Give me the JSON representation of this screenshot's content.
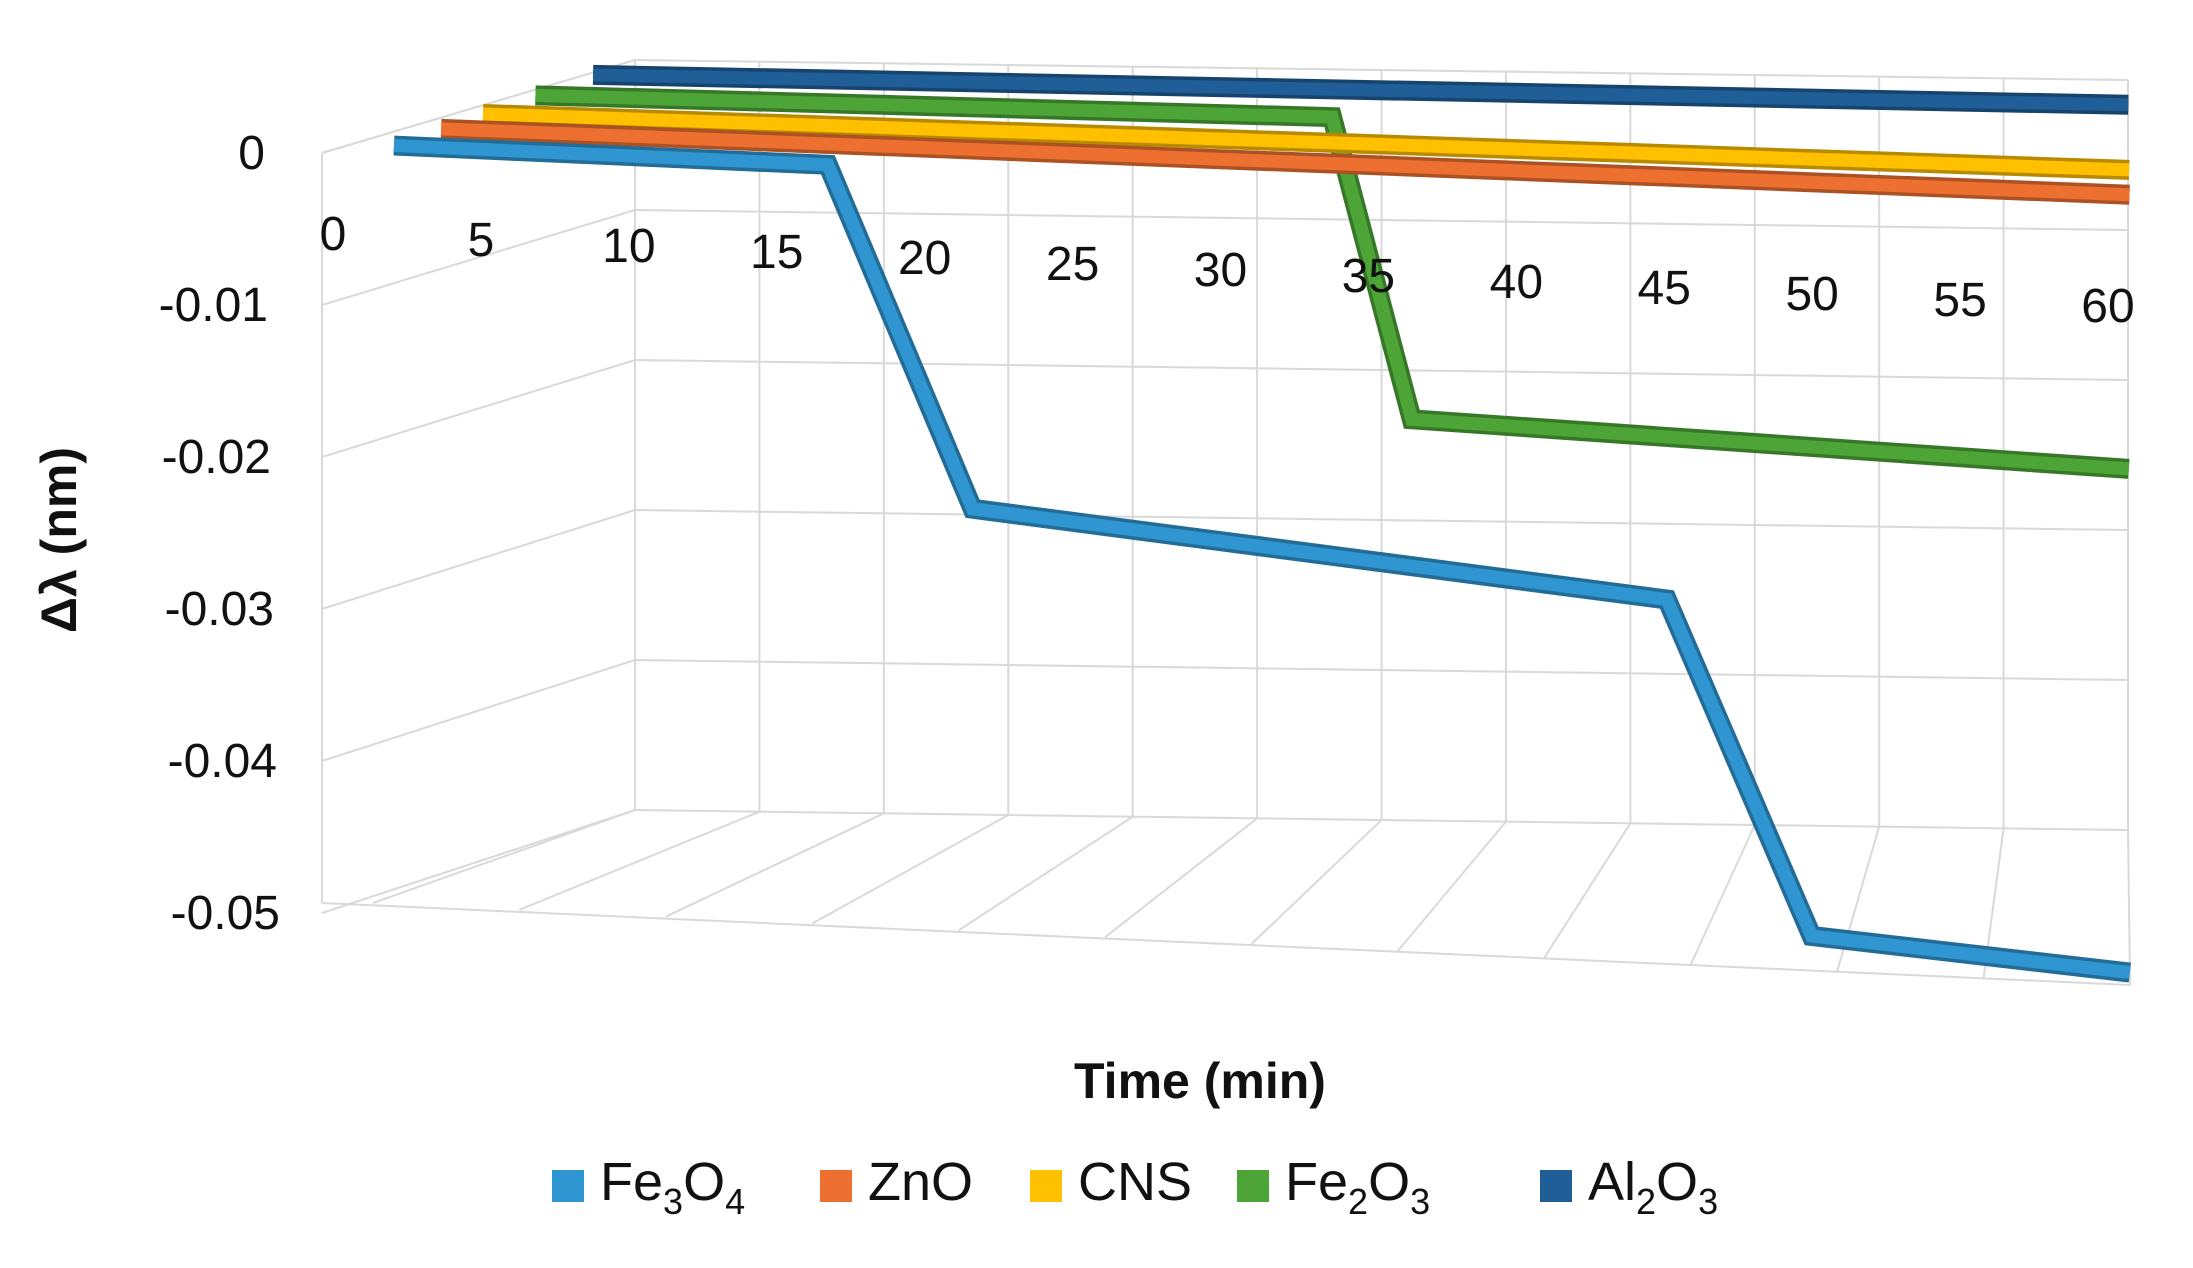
{
  "chart_data": {
    "type": "line",
    "subtype": "3d-line",
    "title": "",
    "xlabel": "Time (min)",
    "ylabel": "Δλ (nm)",
    "x_ticks": [
      "0",
      "5",
      "10",
      "15",
      "20",
      "25",
      "30",
      "35",
      "40",
      "45",
      "50",
      "55",
      "60"
    ],
    "y_ticks": [
      "0",
      "-0.01",
      "-0.02",
      "-0.03",
      "-0.04",
      "-0.05"
    ],
    "xlim": [
      0,
      60
    ],
    "ylim": [
      -0.05,
      0
    ],
    "grid": true,
    "legend_position": "bottom",
    "series": [
      {
        "name": "Fe3O4",
        "legend": {
          "base": "Fe",
          "sub1": "3",
          "mid": "O",
          "sub2": "4"
        },
        "color": "#2f96d2",
        "x": [
          0,
          15,
          20,
          44,
          49,
          60
        ],
        "y": [
          0,
          0,
          -0.0225,
          -0.0265,
          -0.0485,
          -0.05
        ]
      },
      {
        "name": "ZnO",
        "legend": {
          "base": "ZnO",
          "sub1": "",
          "mid": "",
          "sub2": ""
        },
        "color": "#ed7030",
        "x": [
          0,
          60
        ],
        "y": [
          0,
          0
        ]
      },
      {
        "name": "CNS",
        "legend": {
          "base": "CNS",
          "sub1": "",
          "mid": "",
          "sub2": ""
        },
        "color": "#ffc000",
        "x": [
          0,
          60
        ],
        "y": [
          0,
          0
        ]
      },
      {
        "name": "Fe2O3",
        "legend": {
          "base": "Fe",
          "sub1": "2",
          "mid": "O",
          "sub2": "3"
        },
        "color": "#4da537",
        "x": [
          0,
          30,
          33,
          60
        ],
        "y": [
          0,
          0,
          -0.02,
          -0.022
        ]
      },
      {
        "name": "Al2O3",
        "legend": {
          "base": "Al",
          "sub1": "2",
          "mid": "O",
          "sub2": "3"
        },
        "color": "#1f5e97",
        "x": [
          0,
          60
        ],
        "y": [
          0,
          0
        ]
      }
    ]
  }
}
